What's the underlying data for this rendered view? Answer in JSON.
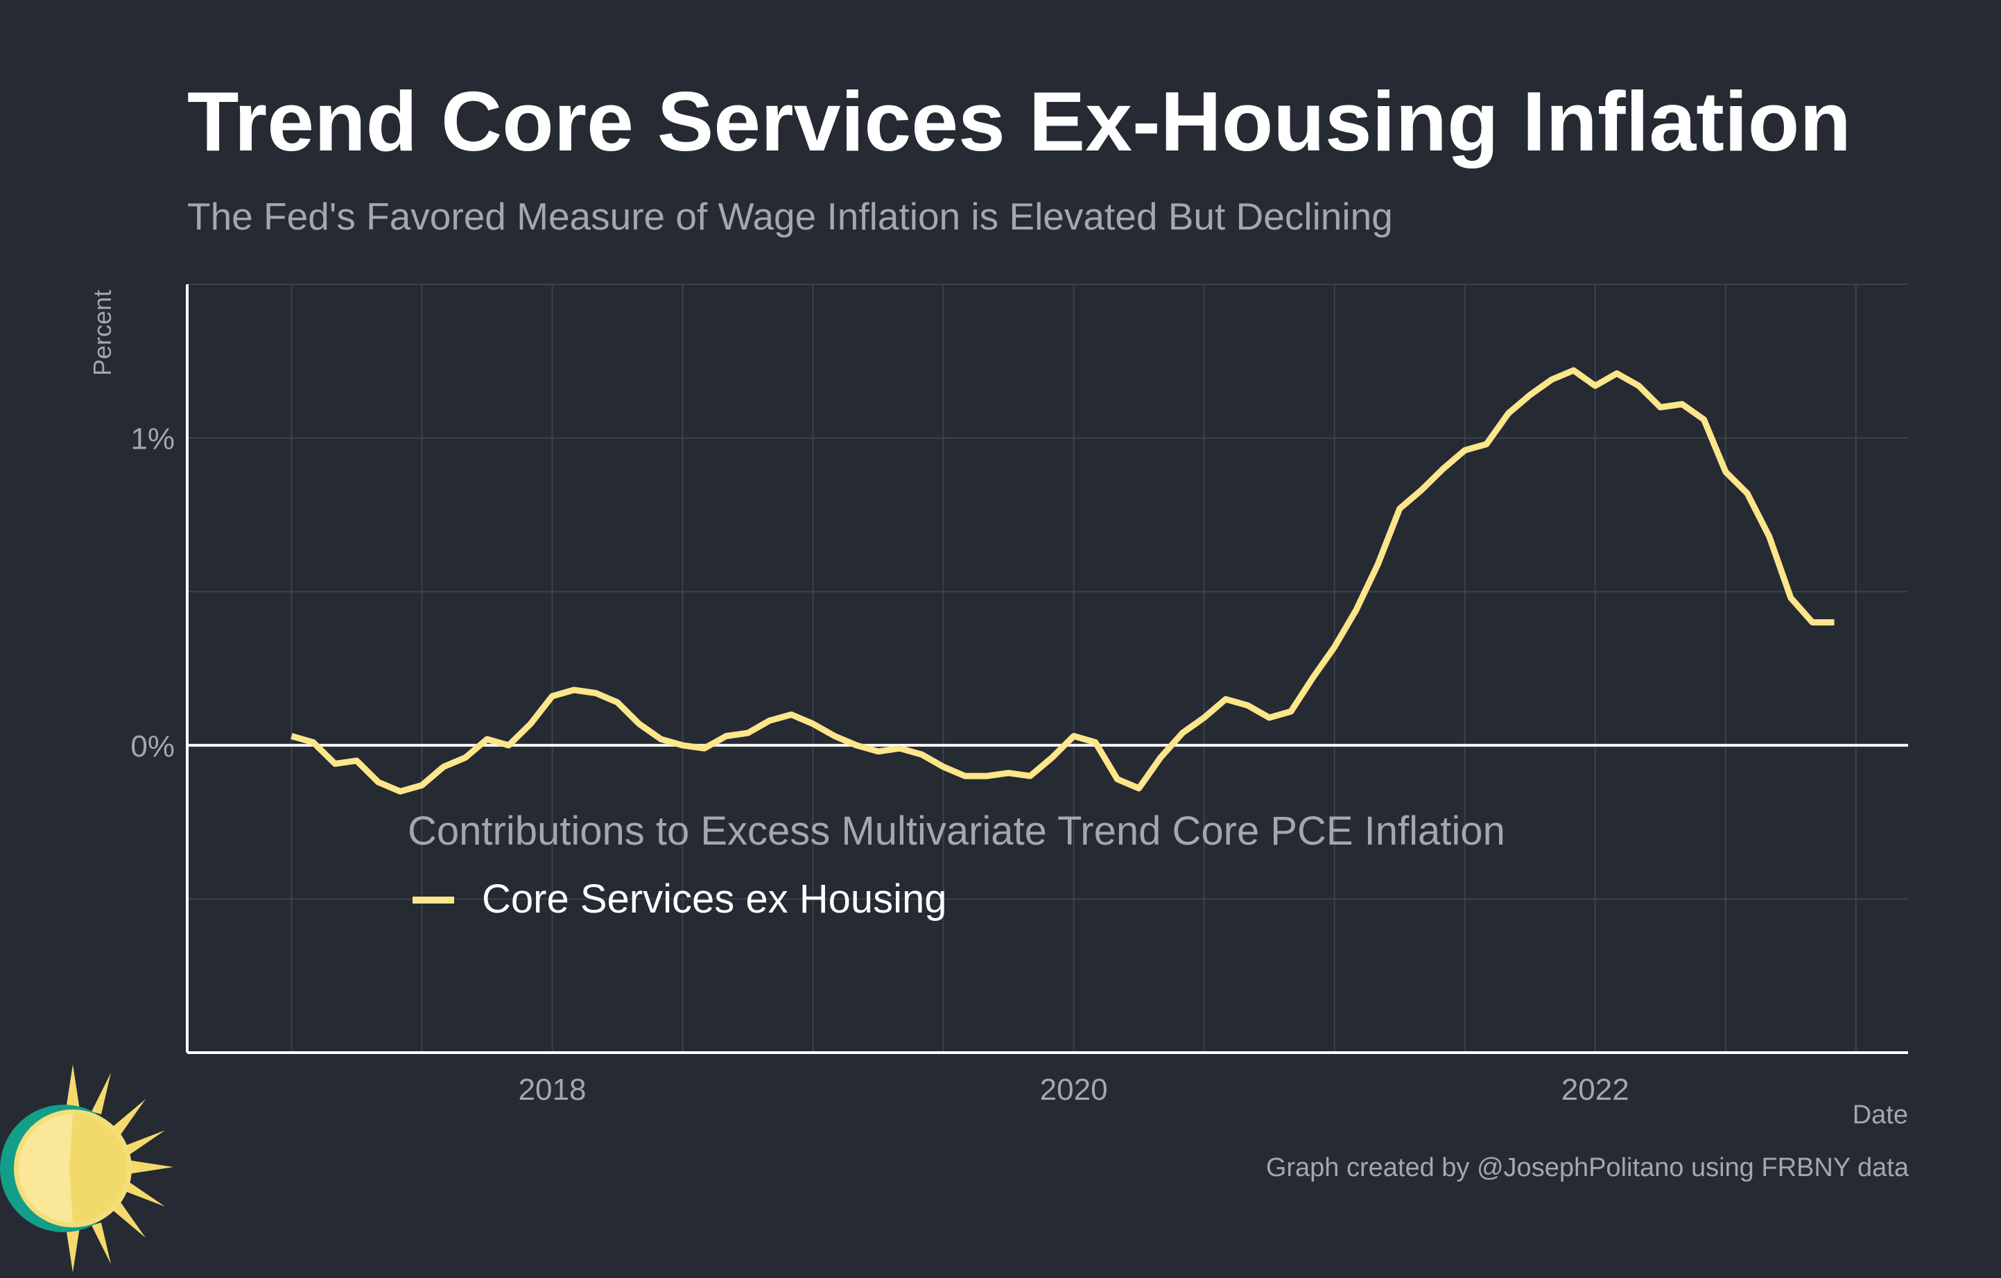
{
  "header": {
    "title": "Trend Core Services Ex-Housing Inflation",
    "subtitle": "The Fed's Favored Measure of Wage Inflation is Elevated But Declining"
  },
  "footer": {
    "credit": "Graph created by @JosephPolitano using FRBNY data"
  },
  "colors": {
    "background": "#252a33",
    "line": "#fde68a",
    "grid": "#3c424d",
    "axis": "#ffffff",
    "muted_text": "#a3a7ae"
  },
  "chart_data": {
    "type": "line",
    "title": "Trend Core Services Ex-Housing Inflation",
    "subtitle": "The Fed's Favored Measure of Wage Inflation is Elevated But Declining",
    "xlabel": "Date",
    "ylabel": "Percent",
    "xlim": [
      2016.6,
      2023.2
    ],
    "ylim": [
      -1.0,
      1.5
    ],
    "x_ticks": [
      2018,
      2020,
      2022
    ],
    "x_tick_labels": [
      "2018",
      "2020",
      "2022"
    ],
    "y_ticks": [
      0,
      1
    ],
    "y_tick_labels": [
      "0%",
      "1%"
    ],
    "zero_line": true,
    "grid": true,
    "legend": {
      "title": "Contributions to Excess Multivariate Trend Core PCE Inflation",
      "entries": [
        "Core Services ex Housing"
      ],
      "placement": "center-left"
    },
    "series": [
      {
        "name": "Core Services ex Housing",
        "x": [
          2017.0,
          2017.083,
          2017.167,
          2017.25,
          2017.333,
          2017.417,
          2017.5,
          2017.583,
          2017.667,
          2017.75,
          2017.833,
          2017.917,
          2018.0,
          2018.083,
          2018.167,
          2018.25,
          2018.333,
          2018.417,
          2018.5,
          2018.583,
          2018.667,
          2018.75,
          2018.833,
          2018.917,
          2019.0,
          2019.083,
          2019.167,
          2019.25,
          2019.333,
          2019.417,
          2019.5,
          2019.583,
          2019.667,
          2019.75,
          2019.833,
          2019.917,
          2020.0,
          2020.083,
          2020.167,
          2020.25,
          2020.333,
          2020.417,
          2020.5,
          2020.583,
          2020.667,
          2020.75,
          2020.833,
          2020.917,
          2021.0,
          2021.083,
          2021.167,
          2021.25,
          2021.333,
          2021.417,
          2021.5,
          2021.583,
          2021.667,
          2021.75,
          2021.833,
          2021.917,
          2022.0,
          2022.083,
          2022.167,
          2022.25,
          2022.333,
          2022.417,
          2022.5,
          2022.583,
          2022.667,
          2022.75,
          2022.833,
          2022.917
        ],
        "values": [
          0.03,
          0.01,
          -0.06,
          -0.05,
          -0.12,
          -0.15,
          -0.13,
          -0.07,
          -0.04,
          0.02,
          0.0,
          0.07,
          0.16,
          0.18,
          0.17,
          0.14,
          0.07,
          0.02,
          0.0,
          -0.01,
          0.03,
          0.04,
          0.08,
          0.1,
          0.07,
          0.03,
          0.0,
          -0.02,
          -0.01,
          -0.03,
          -0.07,
          -0.1,
          -0.1,
          -0.09,
          -0.1,
          -0.04,
          0.03,
          0.01,
          -0.11,
          -0.14,
          -0.04,
          0.04,
          0.09,
          0.15,
          0.13,
          0.09,
          0.11,
          0.22,
          0.32,
          0.44,
          0.59,
          0.77,
          0.83,
          0.9,
          0.96,
          0.98,
          1.08,
          1.14,
          1.19,
          1.22,
          1.17,
          1.21,
          1.17,
          1.1,
          1.11,
          1.06,
          0.89,
          0.82,
          0.68,
          0.48,
          0.4,
          0.4
        ]
      }
    ]
  }
}
